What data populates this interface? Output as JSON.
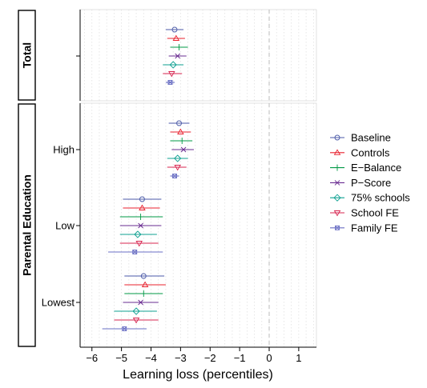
{
  "chart_data": {
    "type": "scatter",
    "xlabel": "Learning loss (percentiles)",
    "xlim": [
      -6.4,
      1.6
    ],
    "x_ticks": [
      -6,
      -5,
      -4,
      -3,
      -2,
      -1,
      0,
      1
    ],
    "x_tick_labels": [
      "−6",
      "−5",
      "−4",
      "−3",
      "−2",
      "−1",
      "0",
      "1"
    ],
    "reference_line": 0,
    "legend_position": "right",
    "panels": [
      {
        "name": "Total",
        "groups": [
          {
            "label": "",
            "key": "total"
          }
        ]
      },
      {
        "name": "Parental Education",
        "groups": [
          {
            "label": "High",
            "key": "high"
          },
          {
            "label": "Low",
            "key": "low"
          },
          {
            "label": "Lowest",
            "key": "lowest"
          }
        ]
      }
    ],
    "series": [
      {
        "name": "Baseline",
        "color": "#4b5aa8",
        "marker": "circle",
        "points": {
          "total": [
            -3.2,
            -3.5,
            -2.9
          ],
          "high": [
            -3.05,
            -3.4,
            -2.7
          ],
          "low": [
            -4.3,
            -4.95,
            -3.65
          ],
          "lowest": [
            -4.25,
            -4.9,
            -3.55
          ]
        }
      },
      {
        "name": "Controls",
        "color": "#e8212e",
        "marker": "triangle-up",
        "points": {
          "total": [
            -3.15,
            -3.45,
            -2.85
          ],
          "high": [
            -3.0,
            -3.35,
            -2.65
          ],
          "low": [
            -4.3,
            -4.95,
            -3.7
          ],
          "lowest": [
            -4.2,
            -4.9,
            -3.5
          ]
        }
      },
      {
        "name": "E−Balance",
        "color": "#009944",
        "marker": "plus",
        "points": {
          "total": [
            -3.05,
            -3.35,
            -2.75
          ],
          "high": [
            -2.95,
            -3.35,
            -2.6
          ],
          "low": [
            -4.35,
            -5.05,
            -3.6
          ],
          "lowest": [
            -4.25,
            -4.9,
            -3.6
          ]
        }
      },
      {
        "name": "P−Score",
        "color": "#6a2c91",
        "marker": "cross",
        "points": {
          "total": [
            -3.1,
            -3.4,
            -2.8
          ],
          "high": [
            -2.9,
            -3.3,
            -2.55
          ],
          "low": [
            -4.35,
            -5.05,
            -3.65
          ],
          "lowest": [
            -4.35,
            -4.95,
            -3.75
          ]
        }
      },
      {
        "name": "75% schools",
        "color": "#0fa192",
        "marker": "diamond",
        "points": {
          "total": [
            -3.25,
            -3.6,
            -2.9
          ],
          "high": [
            -3.1,
            -3.45,
            -2.75
          ],
          "low": [
            -4.45,
            -5.05,
            -3.8
          ],
          "lowest": [
            -4.5,
            -5.25,
            -3.8
          ]
        }
      },
      {
        "name": "School FE",
        "color": "#d7244f",
        "marker": "triangle-down",
        "points": {
          "total": [
            -3.3,
            -3.6,
            -2.95
          ],
          "high": [
            -3.1,
            -3.45,
            -2.8
          ],
          "low": [
            -4.4,
            -5.05,
            -3.75
          ],
          "lowest": [
            -4.5,
            -5.25,
            -3.75
          ]
        }
      },
      {
        "name": "Family FE",
        "color": "#6a6fc4",
        "marker": "square-x",
        "points": {
          "total": [
            -3.35,
            -3.5,
            -3.2
          ],
          "high": [
            -3.2,
            -3.35,
            -3.05
          ],
          "low": [
            -4.55,
            -5.45,
            -3.6
          ],
          "lowest": [
            -4.9,
            -5.65,
            -4.15
          ]
        }
      }
    ]
  }
}
